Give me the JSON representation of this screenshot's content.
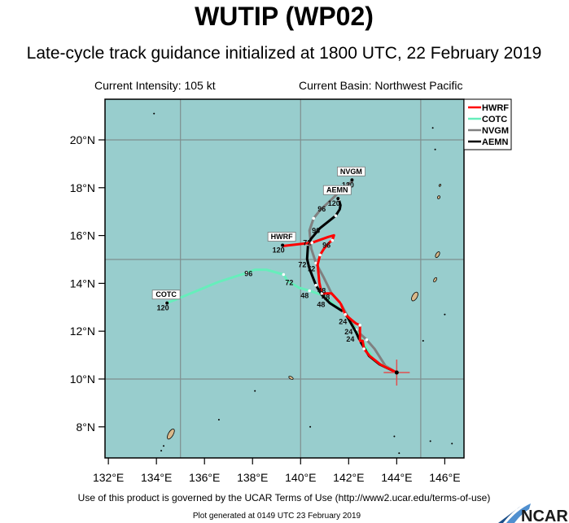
{
  "title": "WUTIP (WP02)",
  "subtitle": "Late-cycle track guidance initialized at 1800 UTC, 22 February 2019",
  "current_intensity": "Current Intensity: 105 kt",
  "current_basin": "Current Basin: Northwest Pacific",
  "footer_terms": "Use of this product is governed by the UCAR Terms of Use (http://www2.ucar.edu/terms-of-use)",
  "footer_generated": "Plot generated at 0149 UTC   23 February 2019",
  "logo_text": "NCAR",
  "colors": {
    "ocean": "#98cdcd",
    "land": "#d9b98a",
    "HWRF": "#ff0000",
    "COTC": "#66eebb",
    "NVGM": "#808080",
    "AEMN": "#000000",
    "grid": "#7f8f8f"
  },
  "chart_data": {
    "type": "map-track",
    "lon_range": [
      131.86,
      146.8
    ],
    "lat_range": [
      6.7,
      21.7
    ],
    "x_ticks": [
      "132°E",
      "134°E",
      "136°E",
      "138°E",
      "140°E",
      "142°E",
      "144°E",
      "146°E"
    ],
    "x_tick_values": [
      132,
      134,
      136,
      138,
      140,
      142,
      144,
      146
    ],
    "y_ticks": [
      "8°N",
      "10°N",
      "12°N",
      "14°N",
      "16°N",
      "18°N",
      "20°N"
    ],
    "y_tick_values": [
      8,
      10,
      12,
      14,
      16,
      18,
      20
    ],
    "grid_lon": [
      135,
      140,
      145
    ],
    "grid_lat": [
      10,
      15,
      20
    ],
    "initial_position": [
      144.0,
      10.27
    ],
    "legend": {
      "placement": "top-right",
      "entries": [
        "HWRF",
        "COTC",
        "NVGM",
        "AEMN"
      ]
    },
    "series": [
      {
        "name": "HWRF",
        "end_hour": "120",
        "end": [
          139.08,
          15.39
        ],
        "track": [
          [
            144.0,
            10.27
          ],
          [
            143.32,
            10.61
          ],
          [
            142.88,
            10.96
          ],
          [
            142.64,
            11.26
          ],
          [
            142.58,
            11.6
          ],
          [
            142.47,
            11.6
          ],
          [
            142.47,
            12.25
          ],
          [
            142.31,
            12.32
          ],
          [
            142.1,
            12.49
          ],
          [
            141.86,
            12.7
          ],
          [
            141.66,
            13.17
          ],
          [
            141.29,
            13.58
          ],
          [
            140.88,
            13.58
          ],
          [
            140.78,
            14.03
          ],
          [
            140.71,
            14.78
          ],
          [
            140.81,
            15.19
          ],
          [
            140.98,
            15.46
          ],
          [
            141.22,
            15.73
          ],
          [
            141.32,
            15.8
          ],
          [
            141.39,
            16.01
          ],
          [
            141.15,
            15.94
          ],
          [
            140.47,
            15.7
          ],
          [
            139.25,
            15.56
          ]
        ]
      },
      {
        "name": "COTC",
        "end_hour": "120",
        "end": [
          134.27,
          12.97
        ],
        "track": [
          [
            144.0,
            10.27
          ],
          [
            143.08,
            10.75
          ],
          [
            142.75,
            11.3
          ],
          [
            142.31,
            12.05
          ],
          [
            141.8,
            12.8
          ],
          [
            140.88,
            13.52
          ],
          [
            140.37,
            13.69
          ],
          [
            139.93,
            13.82
          ],
          [
            139.46,
            14.1
          ],
          [
            139.29,
            14.37
          ],
          [
            138.58,
            14.57
          ],
          [
            138.1,
            14.57
          ],
          [
            137.76,
            14.44
          ],
          [
            136.58,
            14.06
          ],
          [
            134.85,
            13.34
          ],
          [
            134.41,
            13.17
          ]
        ]
      },
      {
        "name": "NVGM",
        "end_hour": "120",
        "end": [
          141.97,
          18.12
        ],
        "track": [
          [
            144.0,
            10.27
          ],
          [
            143.53,
            10.55
          ],
          [
            143.08,
            11.26
          ],
          [
            142.75,
            11.64
          ],
          [
            142.31,
            12.05
          ],
          [
            141.9,
            12.73
          ],
          [
            141.66,
            13.17
          ],
          [
            141.29,
            13.58
          ],
          [
            140.95,
            14.27
          ],
          [
            140.64,
            14.85
          ],
          [
            140.44,
            15.46
          ],
          [
            140.37,
            16.21
          ],
          [
            140.54,
            16.72
          ],
          [
            140.81,
            17.06
          ],
          [
            141.29,
            17.51
          ],
          [
            141.73,
            17.95
          ],
          [
            142.17,
            18.29
          ]
        ]
      },
      {
        "name": "AEMN",
        "end_hour": "120",
        "end": [
          141.39,
          17.34
        ],
        "track": [
          [
            144.0,
            10.27
          ],
          [
            143.29,
            10.61
          ],
          [
            142.85,
            10.96
          ],
          [
            142.47,
            11.6
          ],
          [
            142.31,
            11.95
          ],
          [
            141.97,
            12.56
          ],
          [
            141.8,
            12.8
          ],
          [
            141.22,
            13.17
          ],
          [
            140.88,
            13.52
          ],
          [
            140.64,
            13.92
          ],
          [
            140.37,
            14.61
          ],
          [
            140.27,
            15.02
          ],
          [
            140.31,
            15.63
          ],
          [
            140.44,
            15.87
          ],
          [
            140.81,
            16.31
          ],
          [
            141.46,
            16.83
          ],
          [
            141.63,
            17.1
          ],
          [
            141.66,
            17.27
          ],
          [
            141.59,
            17.51
          ]
        ]
      }
    ],
    "hour_labels": [
      {
        "text": "96",
        "pos": [
          140.88,
          17.1
        ]
      },
      {
        "text": "96",
        "pos": [
          140.64,
          16.21
        ]
      },
      {
        "text": "72",
        "pos": [
          140.27,
          15.7
        ]
      },
      {
        "text": "96",
        "pos": [
          141.08,
          15.6
        ]
      },
      {
        "text": "72",
        "pos": [
          140.07,
          14.78
        ]
      },
      {
        "text": "72",
        "pos": [
          140.44,
          14.61
        ]
      },
      {
        "text": "48",
        "pos": [
          140.88,
          13.69
        ]
      },
      {
        "text": "48",
        "pos": [
          141.05,
          13.41
        ]
      },
      {
        "text": "48",
        "pos": [
          140.85,
          13.11
        ]
      },
      {
        "text": "48",
        "pos": [
          140.17,
          13.48
        ]
      },
      {
        "text": "96",
        "pos": [
          137.83,
          14.4
        ]
      },
      {
        "text": "72",
        "pos": [
          139.53,
          14.03
        ]
      },
      {
        "text": "24",
        "pos": [
          141.76,
          12.39
        ]
      },
      {
        "text": "24",
        "pos": [
          142.0,
          11.98
        ]
      },
      {
        "text": "24",
        "pos": [
          142.07,
          11.67
        ]
      }
    ]
  }
}
